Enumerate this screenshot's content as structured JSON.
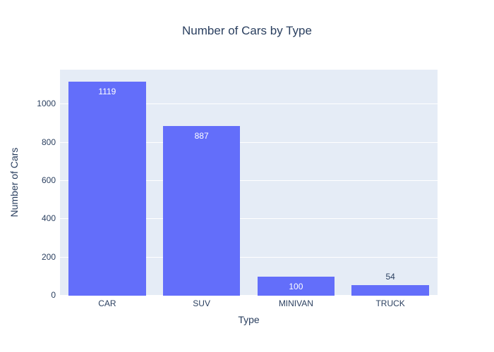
{
  "chart_data": {
    "type": "bar",
    "title": "Number of Cars by Type",
    "xlabel": "Type",
    "ylabel": "Number of Cars",
    "categories": [
      "CAR",
      "SUV",
      "MINIVAN",
      "TRUCK"
    ],
    "values": [
      1119,
      887,
      100,
      54
    ],
    "yticks": [
      0,
      200,
      400,
      600,
      800,
      1000
    ],
    "ylim": [
      0,
      1181
    ],
    "grid": true,
    "legend_position": "none",
    "bar_label_placement": [
      "inside",
      "inside",
      "inside",
      "outside"
    ],
    "colors": {
      "bar": "#636efa",
      "plot_background": "#e5ecf6",
      "gridline": "#ffffff",
      "text": "#2a3f5f",
      "inside_label": "#ffffff",
      "page_background": "#ffffff"
    }
  }
}
